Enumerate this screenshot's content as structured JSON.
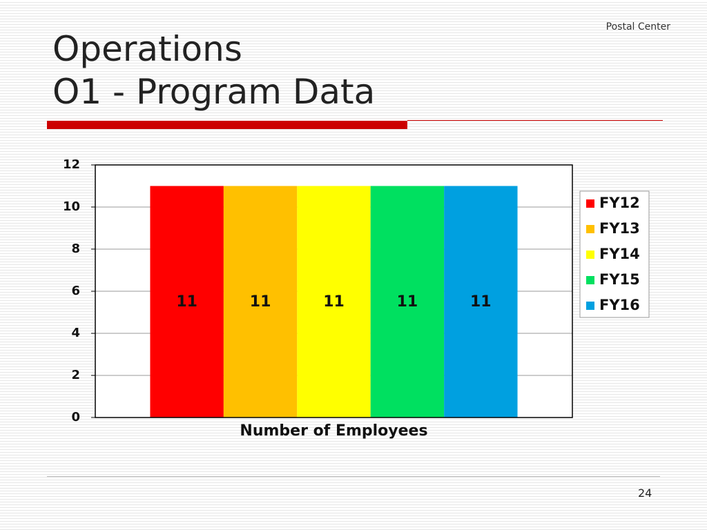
{
  "header": {
    "org": "Postal Center",
    "title_lines": [
      "Operations",
      "O1 - Program Data"
    ]
  },
  "page_number": 24,
  "chart_data": {
    "type": "bar",
    "categories": [
      "Number of Employees"
    ],
    "series": [
      {
        "name": "FY12",
        "color": "#ff0000",
        "values": [
          11
        ]
      },
      {
        "name": "FY13",
        "color": "#ffc000",
        "values": [
          11
        ]
      },
      {
        "name": "FY14",
        "color": "#ffff00",
        "values": [
          11
        ]
      },
      {
        "name": "FY15",
        "color": "#00e060",
        "values": [
          11
        ]
      },
      {
        "name": "FY16",
        "color": "#00a0e0",
        "values": [
          11
        ]
      }
    ],
    "ylim": [
      0,
      12
    ],
    "yticks": [
      0,
      2,
      4,
      6,
      8,
      10,
      12
    ],
    "grid": true,
    "legend": "right"
  }
}
